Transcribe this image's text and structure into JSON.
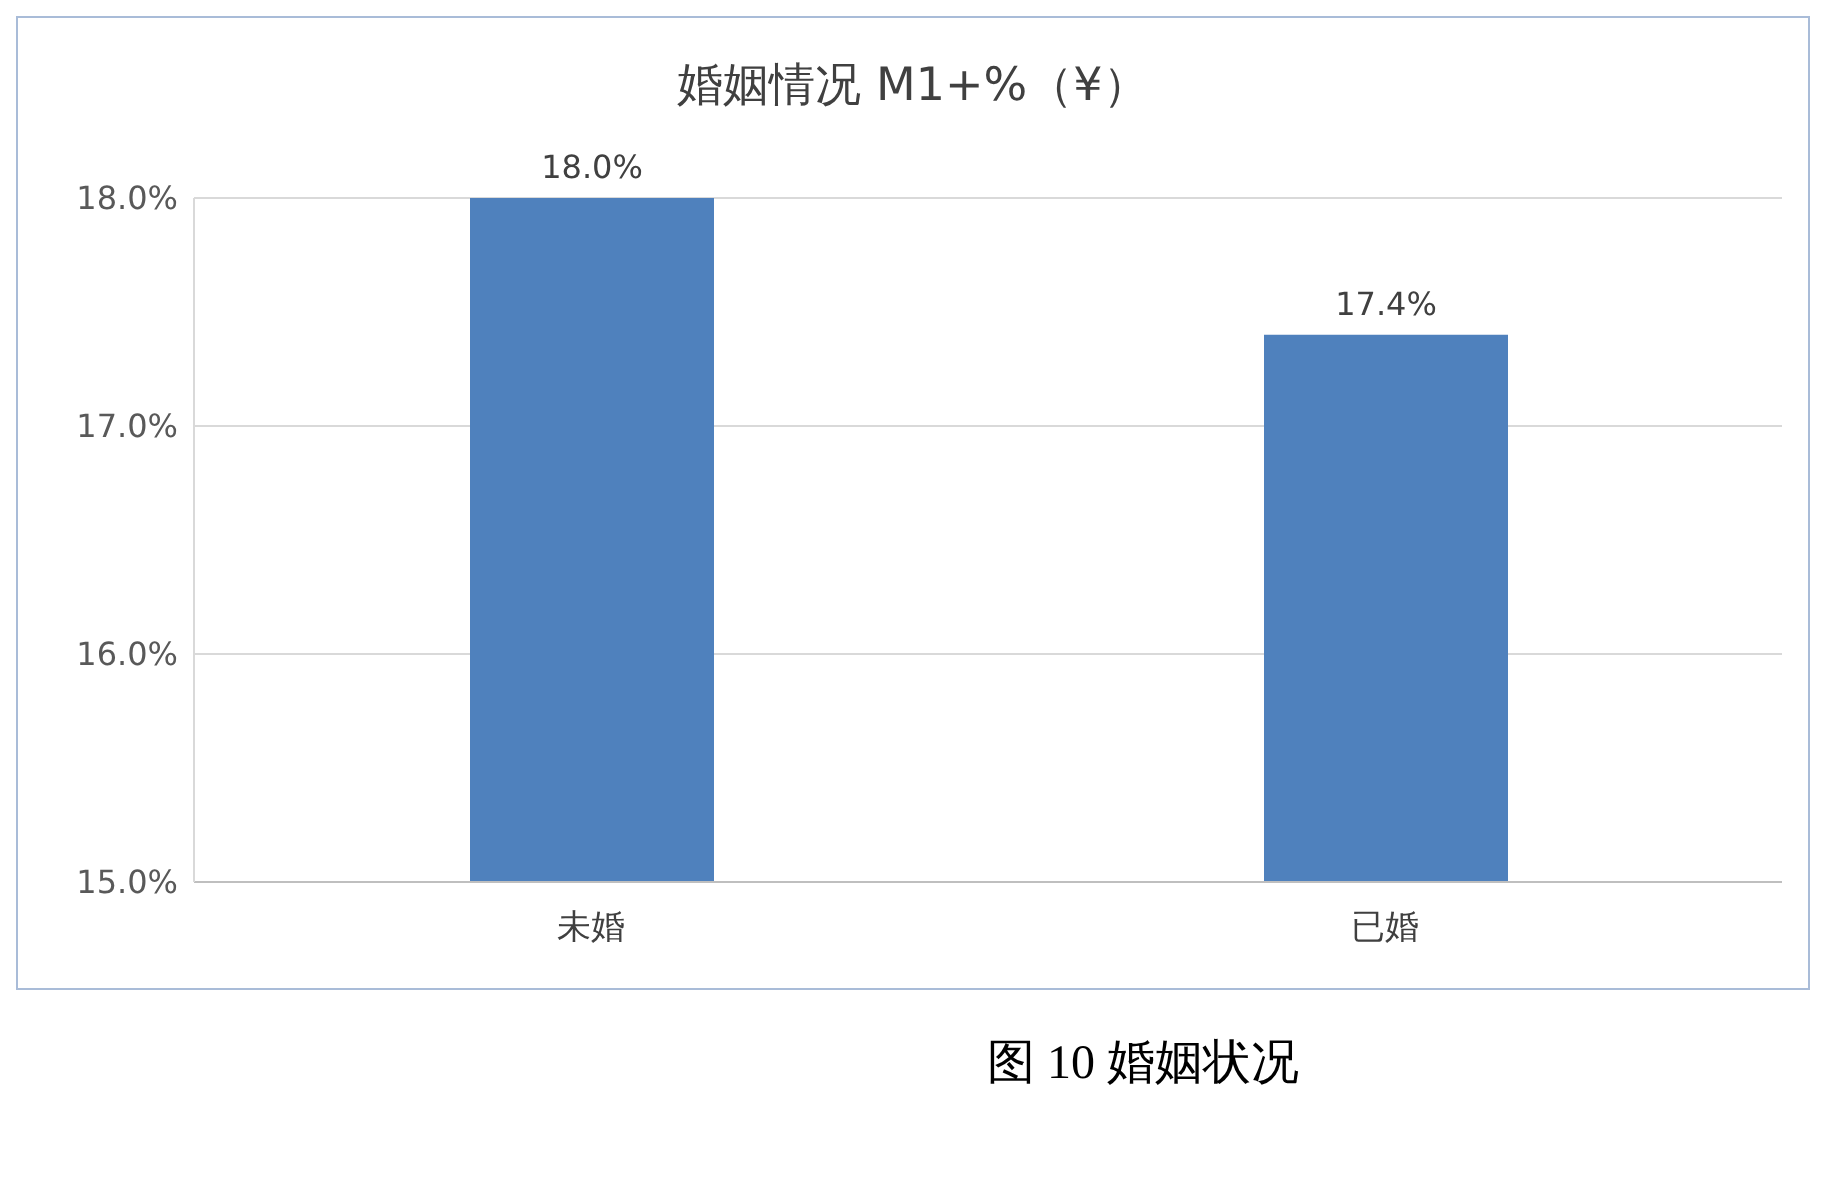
{
  "chart_data": {
    "type": "bar",
    "title": "婚姻情况 M1+%（¥）",
    "categories": [
      "未婚",
      "已婚"
    ],
    "series": [
      {
        "color": "#4f81bd",
        "values": [
          18.0,
          17.4
        ],
        "value_labels": [
          "18.0%",
          "17.4%"
        ]
      }
    ],
    "ylim": [
      15,
      18
    ],
    "yticks": [
      {
        "value": 15,
        "label": "15.0%"
      },
      {
        "value": 16,
        "label": "16.0%"
      },
      {
        "value": 17,
        "label": "17.0%"
      },
      {
        "value": 18,
        "label": "18.0%"
      }
    ],
    "grid": "y",
    "legend": false,
    "annotations": [
      "图 10  婚姻状况"
    ]
  }
}
